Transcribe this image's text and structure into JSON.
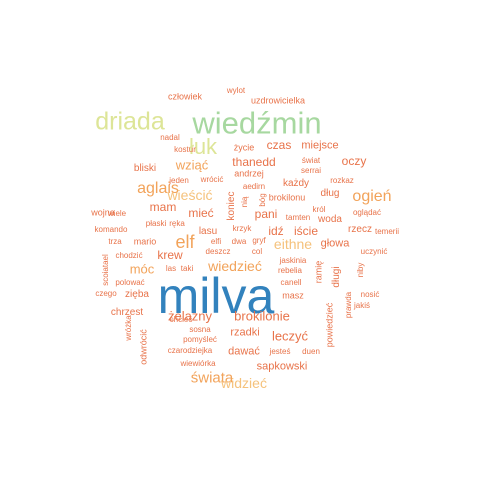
{
  "word_cloud": {
    "words": [
      {
        "text": "milva",
        "color": "#3282bd",
        "size": 1,
        "vertical": false
      },
      {
        "text": "wiedźmin",
        "color": "#a7d8a0",
        "size": 0.62,
        "vertical": false
      },
      {
        "text": "driada",
        "color": "#dde597",
        "size": 0.5,
        "vertical": false
      },
      {
        "text": "łuk",
        "color": "#dde597",
        "size": 0.44,
        "vertical": false
      },
      {
        "text": "elf",
        "color": "#f2a35a",
        "size": 0.36,
        "vertical": false
      },
      {
        "text": "aglais",
        "color": "#f2a35a",
        "size": 0.32,
        "vertical": false
      },
      {
        "text": "ogień",
        "color": "#f2a35a",
        "size": 0.32,
        "vertical": false
      },
      {
        "text": "świata",
        "color": "#f2a35a",
        "size": 0.3,
        "vertical": false
      },
      {
        "text": "wiedzieć",
        "color": "#f2a35a",
        "size": 0.28,
        "vertical": false
      },
      {
        "text": "wieścić",
        "color": "#f5c27c",
        "size": 0.28,
        "vertical": false
      },
      {
        "text": "eithne",
        "color": "#f5c27c",
        "size": 0.28,
        "vertical": false
      },
      {
        "text": "widzieć",
        "color": "#f5c27c",
        "size": 0.28,
        "vertical": false
      },
      {
        "text": "wziąć",
        "color": "#f2a35a",
        "size": 0.26,
        "vertical": false
      },
      {
        "text": "móc",
        "color": "#f2a35a",
        "size": 0.26,
        "vertical": false
      },
      {
        "text": "żelazny",
        "color": "#e8734a",
        "size": 0.26,
        "vertical": false
      },
      {
        "text": "brokilonie",
        "color": "#e8734a",
        "size": 0.26,
        "vertical": false
      },
      {
        "text": "leczyć",
        "color": "#e8734a",
        "size": 0.26,
        "vertical": false
      },
      {
        "text": "czas",
        "color": "#e8734a",
        "size": 0.24,
        "vertical": false
      },
      {
        "text": "miejsce",
        "color": "#e8734a",
        "size": 0.22,
        "vertical": false
      },
      {
        "text": "oczy",
        "color": "#e8734a",
        "size": 0.24,
        "vertical": false
      },
      {
        "text": "thanedd",
        "color": "#e8734a",
        "size": 0.24,
        "vertical": false
      },
      {
        "text": "mam",
        "color": "#e8734a",
        "size": 0.24,
        "vertical": false
      },
      {
        "text": "mieć",
        "color": "#e8734a",
        "size": 0.24,
        "vertical": false
      },
      {
        "text": "pani",
        "color": "#e8734a",
        "size": 0.24,
        "vertical": false
      },
      {
        "text": "krew",
        "color": "#e8734a",
        "size": 0.24,
        "vertical": false
      },
      {
        "text": "idź",
        "color": "#e8734a",
        "size": 0.24,
        "vertical": false
      },
      {
        "text": "iście",
        "color": "#e8734a",
        "size": 0.24,
        "vertical": false
      },
      {
        "text": "głowa",
        "color": "#e8734a",
        "size": 0.22,
        "vertical": false
      },
      {
        "text": "dawać",
        "color": "#e8734a",
        "size": 0.22,
        "vertical": false
      },
      {
        "text": "rzadki",
        "color": "#e8734a",
        "size": 0.22,
        "vertical": false
      },
      {
        "text": "sapkowski",
        "color": "#e8734a",
        "size": 0.22,
        "vertical": false
      },
      {
        "text": "chrzest",
        "color": "#e8734a",
        "size": 0.2,
        "vertical": false
      },
      {
        "text": "zięba",
        "color": "#e8734a",
        "size": 0.2,
        "vertical": false
      },
      {
        "text": "bliski",
        "color": "#e8734a",
        "size": 0.2,
        "vertical": false
      },
      {
        "text": "koniec",
        "color": "#e8734a",
        "size": 0.2,
        "vertical": true
      },
      {
        "text": "lasu",
        "color": "#e8734a",
        "size": 0.2,
        "vertical": false
      },
      {
        "text": "długi",
        "color": "#e8734a",
        "size": 0.2,
        "vertical": true
      },
      {
        "text": "dług",
        "color": "#e8734a",
        "size": 0.2,
        "vertical": false
      },
      {
        "text": "rzecz",
        "color": "#e8734a",
        "size": 0.2,
        "vertical": false
      },
      {
        "text": "woda",
        "color": "#e8734a",
        "size": 0.2,
        "vertical": false
      },
      {
        "text": "każdy",
        "color": "#e8734a",
        "size": 0.2,
        "vertical": false
      },
      {
        "text": "mario",
        "color": "#e8734a",
        "size": 0.18,
        "vertical": false
      },
      {
        "text": "wojna",
        "color": "#e8734a",
        "size": 0.18,
        "vertical": false
      },
      {
        "text": "masz",
        "color": "#e8734a",
        "size": 0.18,
        "vertical": false
      },
      {
        "text": "człowiek",
        "color": "#e8734a",
        "size": 0.18,
        "vertical": false
      },
      {
        "text": "uzdrowicielka",
        "color": "#e8734a",
        "size": 0.18,
        "vertical": false
      },
      {
        "text": "życie",
        "color": "#e8734a",
        "size": 0.18,
        "vertical": false
      },
      {
        "text": "andrzej",
        "color": "#e8734a",
        "size": 0.18,
        "vertical": false
      },
      {
        "text": "świat",
        "color": "#e8734a",
        "size": 0.16,
        "vertical": false
      },
      {
        "text": "brokilonu",
        "color": "#e8734a",
        "size": 0.18,
        "vertical": false
      },
      {
        "text": "ramię",
        "color": "#e8734a",
        "size": 0.18,
        "vertical": true
      },
      {
        "text": "odwrócić",
        "color": "#e8734a",
        "size": 0.18,
        "vertical": true
      },
      {
        "text": "powiedzieć",
        "color": "#e8734a",
        "size": 0.18,
        "vertical": true
      },
      {
        "text": "kostur",
        "color": "#e8734a",
        "size": 0.16,
        "vertical": false
      },
      {
        "text": "serrai",
        "color": "#e8734a",
        "size": 0.14,
        "vertical": false
      },
      {
        "text": "rozkaz",
        "color": "#e8734a",
        "size": 0.14,
        "vertical": false
      },
      {
        "text": "nadal",
        "color": "#e8734a",
        "size": 0.14,
        "vertical": false
      },
      {
        "text": "wylot",
        "color": "#e8734a",
        "size": 0.14,
        "vertical": false
      },
      {
        "text": "jeden",
        "color": "#e8734a",
        "size": 0.14,
        "vertical": false
      },
      {
        "text": "wrócić",
        "color": "#e8734a",
        "size": 0.14,
        "vertical": false
      },
      {
        "text": "aedirn",
        "color": "#e8734a",
        "size": 0.14,
        "vertical": false
      },
      {
        "text": "bóg",
        "color": "#e8734a",
        "size": 0.14,
        "vertical": true
      },
      {
        "text": "wiele",
        "color": "#e8734a",
        "size": 0.13,
        "vertical": false
      },
      {
        "text": "płaski",
        "color": "#e8734a",
        "size": 0.14,
        "vertical": false
      },
      {
        "text": "ręka",
        "color": "#e8734a",
        "size": 0.14,
        "vertical": false
      },
      {
        "text": "nią",
        "color": "#e8734a",
        "size": 0.14,
        "vertical": true
      },
      {
        "text": "król",
        "color": "#e8734a",
        "size": 0.14,
        "vertical": false
      },
      {
        "text": "tamten",
        "color": "#e8734a",
        "size": 0.13,
        "vertical": false
      },
      {
        "text": "oglądać",
        "color": "#e8734a",
        "size": 0.13,
        "vertical": false
      },
      {
        "text": "temerii",
        "color": "#e8734a",
        "size": 0.13,
        "vertical": false
      },
      {
        "text": "komando",
        "color": "#e8734a",
        "size": 0.13,
        "vertical": false
      },
      {
        "text": "krzyk",
        "color": "#e8734a",
        "size": 0.13,
        "vertical": false
      },
      {
        "text": "trza",
        "color": "#e8734a",
        "size": 0.13,
        "vertical": false
      },
      {
        "text": "elfi",
        "color": "#e8734a",
        "size": 0.13,
        "vertical": false
      },
      {
        "text": "dwa",
        "color": "#e8734a",
        "size": 0.13,
        "vertical": false
      },
      {
        "text": "gryf",
        "color": "#e8734a",
        "size": 0.13,
        "vertical": false
      },
      {
        "text": "uczynić",
        "color": "#e8734a",
        "size": 0.13,
        "vertical": false
      },
      {
        "text": "chodzić",
        "color": "#e8734a",
        "size": 0.13,
        "vertical": false
      },
      {
        "text": "deszcz",
        "color": "#e8734a",
        "size": 0.13,
        "vertical": false
      },
      {
        "text": "col",
        "color": "#e8734a",
        "size": 0.13,
        "vertical": false
      },
      {
        "text": "jaskinia",
        "color": "#e8734a",
        "size": 0.13,
        "vertical": false
      },
      {
        "text": "scoiatael",
        "color": "#e8734a",
        "size": 0.12,
        "vertical": true
      },
      {
        "text": "las",
        "color": "#e8734a",
        "size": 0.13,
        "vertical": false
      },
      {
        "text": "taki",
        "color": "#e8734a",
        "size": 0.13,
        "vertical": false
      },
      {
        "text": "rebelia",
        "color": "#e8734a",
        "size": 0.13,
        "vertical": false
      },
      {
        "text": "niby",
        "color": "#e8734a",
        "size": 0.12,
        "vertical": true
      },
      {
        "text": "polować",
        "color": "#e8734a",
        "size": 0.13,
        "vertical": false
      },
      {
        "text": "canell",
        "color": "#e8734a",
        "size": 0.13,
        "vertical": false
      },
      {
        "text": "czego",
        "color": "#e8734a",
        "size": 0.13,
        "vertical": false
      },
      {
        "text": "nosić",
        "color": "#e8734a",
        "size": 0.13,
        "vertical": false
      },
      {
        "text": "prawda",
        "color": "#e8734a",
        "size": 0.12,
        "vertical": true
      },
      {
        "text": "jakiś",
        "color": "#e8734a",
        "size": 0.13,
        "vertical": false
      },
      {
        "text": "wróżka",
        "color": "#e8734a",
        "size": 0.12,
        "vertical": true
      },
      {
        "text": "chcieć",
        "color": "#e8734a",
        "size": 0.13,
        "vertical": false
      },
      {
        "text": "sosna",
        "color": "#e8734a",
        "size": 0.13,
        "vertical": false
      },
      {
        "text": "pomyśleć",
        "color": "#e8734a",
        "size": 0.13,
        "vertical": false
      },
      {
        "text": "czarodziejka",
        "color": "#e8734a",
        "size": 0.13,
        "vertical": false
      },
      {
        "text": "jesteś",
        "color": "#e8734a",
        "size": 0.13,
        "vertical": false
      },
      {
        "text": "duen",
        "color": "#e8734a",
        "size": 0.13,
        "vertical": false
      },
      {
        "text": "wiewiórka",
        "color": "#e8734a",
        "size": 0.13,
        "vertical": false
      }
    ]
  }
}
